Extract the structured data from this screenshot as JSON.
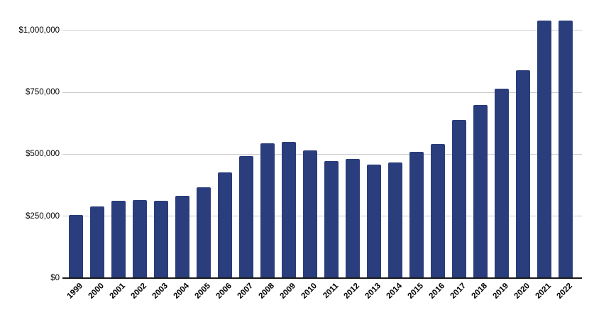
{
  "chart_data": {
    "type": "bar",
    "title": "",
    "xlabel": "",
    "ylabel": "",
    "legend": false,
    "grid": true,
    "categories": [
      "1999",
      "2000",
      "2001",
      "2002",
      "2003",
      "2004",
      "2005",
      "2006",
      "2007",
      "2008",
      "2009",
      "2010",
      "2011",
      "2012",
      "2013",
      "2014",
      "2015",
      "2016",
      "2017",
      "2018",
      "2019",
      "2020",
      "2021",
      "2022"
    ],
    "values": [
      255000,
      290000,
      313000,
      315000,
      312000,
      331000,
      367000,
      426000,
      492000,
      545000,
      550000,
      516000,
      473000,
      480000,
      457000,
      467000,
      510000,
      542000,
      638000,
      699000,
      764000,
      838000,
      1038000,
      1038000
    ],
    "ylim": [
      0,
      1090000
    ],
    "yticks": [
      {
        "value": 0,
        "label": "$0"
      },
      {
        "value": 250000,
        "label": "$250,000"
      },
      {
        "value": 500000,
        "label": "$500,000"
      },
      {
        "value": 750000,
        "label": "$750,000"
      },
      {
        "value": 1000000,
        "label": "$1,000,000"
      }
    ],
    "colors": {
      "bar": "#2a3d7c",
      "gridline": "#cccccc",
      "axis_line": "#1a1a1a",
      "label_text": "#000000",
      "background": "#ffffff"
    }
  }
}
